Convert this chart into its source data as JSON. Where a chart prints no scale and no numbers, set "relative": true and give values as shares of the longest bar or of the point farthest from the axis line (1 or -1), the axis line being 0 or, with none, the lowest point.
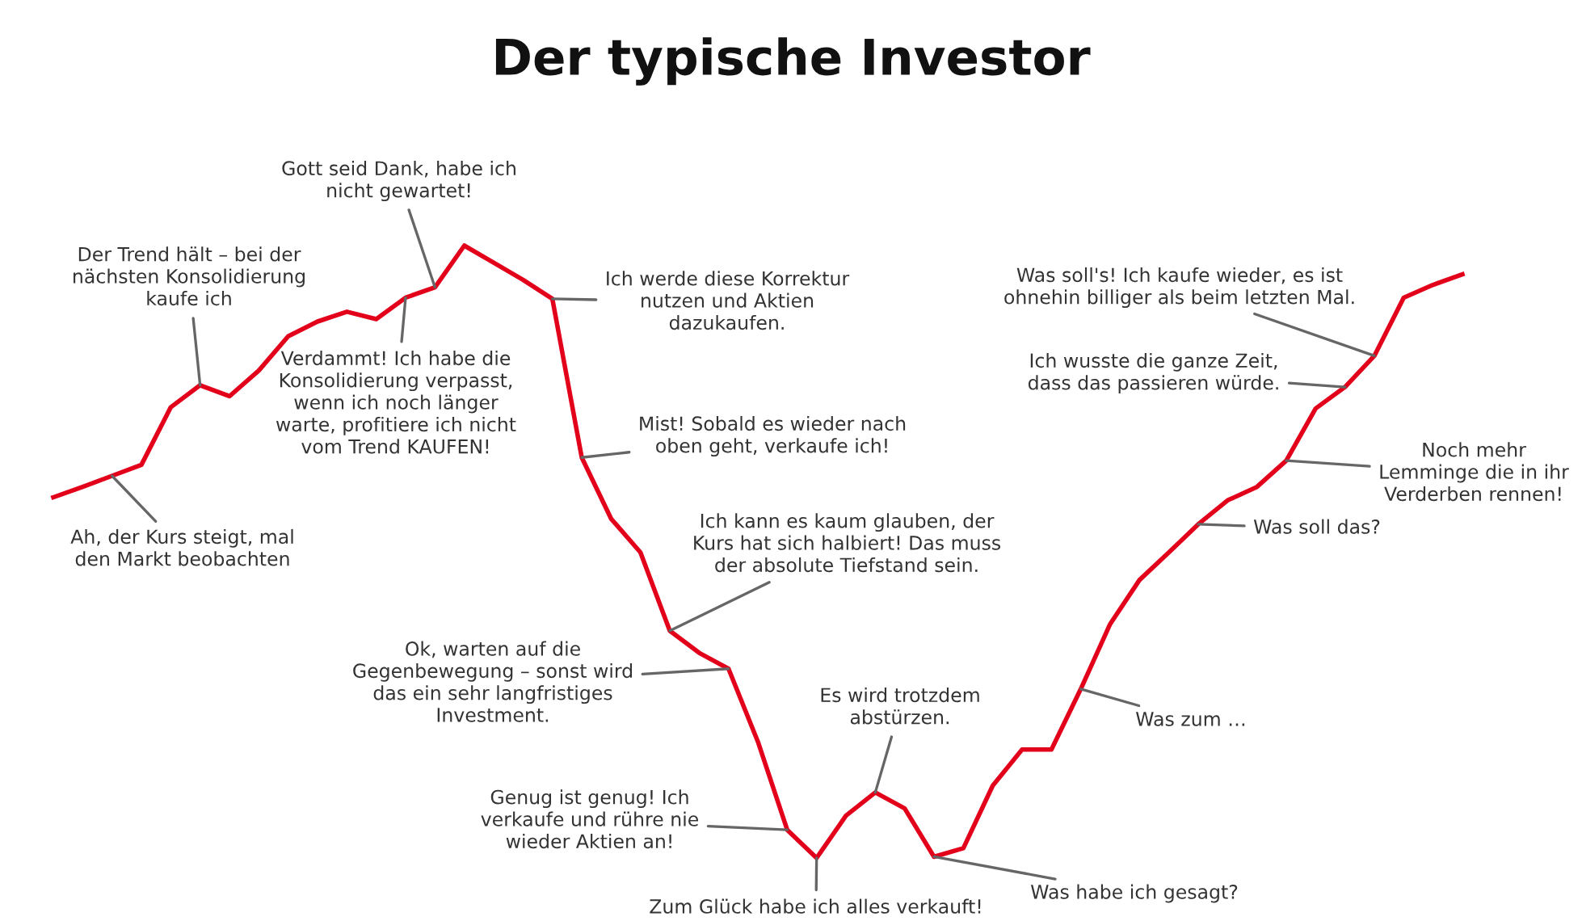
{
  "chart_data": {
    "type": "line",
    "title": "Der typische Investor",
    "relative": true,
    "color": "#e2001a",
    "categories": [
      null,
      null,
      null,
      null,
      null,
      null,
      null,
      null,
      null,
      null,
      null,
      null,
      null,
      null,
      null,
      null,
      null,
      null,
      null,
      null,
      null,
      null,
      null,
      null,
      null,
      null,
      null,
      null,
      null,
      null,
      null,
      null,
      null,
      null,
      null,
      null,
      null,
      null,
      null,
      null,
      null,
      null,
      null,
      null,
      null,
      null,
      null,
      null,
      null
    ],
    "values": [
      0.589,
      0.606,
      0.624,
      0.642,
      0.736,
      0.772,
      0.754,
      0.796,
      0.852,
      0.876,
      0.892,
      0.88,
      0.915,
      0.932,
      1.0,
      0.972,
      0.944,
      0.913,
      0.654,
      0.554,
      0.499,
      0.371,
      0.335,
      0.309,
      0.19,
      0.046,
      0,
      0.069,
      0.107,
      0.081,
      0.002,
      0.016,
      0.118,
      0.177,
      0.177,
      0.276,
      0.382,
      0.454,
      0.499,
      0.545,
      0.584,
      0.606,
      0.649,
      0.734,
      0.769,
      0.82,
      0.915,
      0.936,
      0.953
    ],
    "annotations": [
      "Ah, der Kurs steigt, mal\nden Markt beobachten",
      "Der Trend hält – bei der\nnächsten Konsolidierung\nkaufe ich",
      "Gott seid Dank, habe ich\nnicht gewartet!",
      "Verdammt! Ich habe die\nKonsolidierung verpasst,\nwenn ich noch länger\nwarte, profitiere ich nicht\nvom Trend KAUFEN!",
      "Ich werde diese Korrektur\nnutzen und Aktien\ndazukaufen.",
      "Mist! Sobald es wieder nach\noben geht, verkaufe ich!",
      "Ich kann es kaum glauben, der\nKurs hat sich halbiert! Das muss\nder absolute Tiefstand sein.",
      "Ok, warten auf die\nGegenbewegung – sonst wird\ndas ein sehr langfristiges\nInvestment.",
      "Genug ist genug! Ich\nverkaufe und rühre nie\nwieder Aktien an!",
      "Zum Glück habe ich alles verkauft!",
      "Es wird trotzdem\nabstürzen.",
      "Was habe ich gesagt?",
      "Was zum …",
      "Was soll das?",
      "Noch mehr\nLemminge die in ihr\nVerderben rennen!",
      "Ich wusste die ganze Zeit,\ndass das passieren würde.",
      "Was soll's! Ich kaufe wieder, es ist\nohnehin billiger als beim letzten Mal."
    ]
  }
}
